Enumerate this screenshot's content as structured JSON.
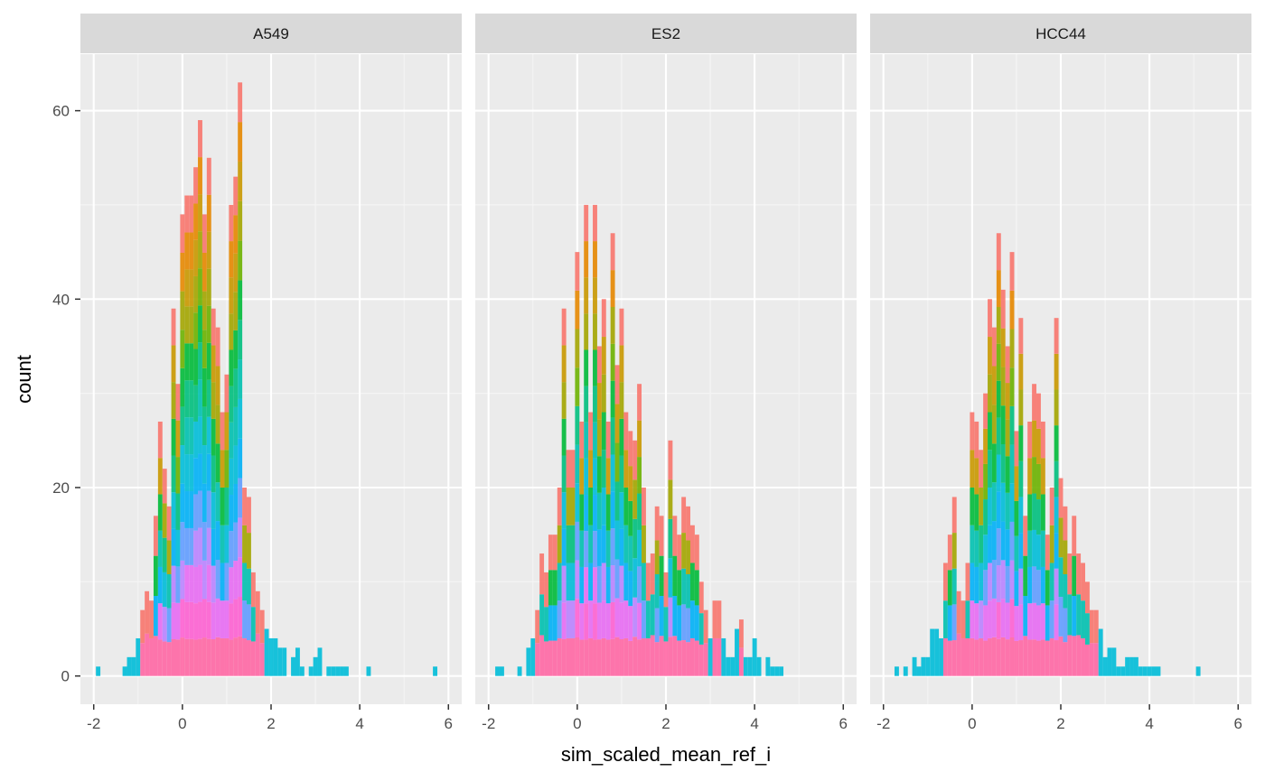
{
  "chart_data": {
    "type": "histogram-faceted-stacked",
    "title": "",
    "xlabel": "sim_scaled_mean_ref_i",
    "ylabel": "count",
    "xlim": [
      -2.3,
      6.3
    ],
    "ylim": [
      -3,
      66
    ],
    "x_ticks": [
      -2,
      0,
      2,
      4,
      6
    ],
    "x_tick_labels": [
      "-2",
      "0",
      "2",
      "4",
      "6"
    ],
    "y_ticks": [
      0,
      20,
      40,
      60
    ],
    "y_tick_labels": [
      "0",
      "20",
      "40",
      "60"
    ],
    "bin_width": 0.1,
    "grid": true,
    "legend": "none",
    "colors": {
      "panel_background": "#EBEBEB",
      "grid_major": "#FFFFFF",
      "grid_minor": "#F5F5F5",
      "strip_background": "#D9D9D9",
      "stack_order": [
        "#F8766D",
        "#E58700",
        "#C99800",
        "#A3A500",
        "#6BB100",
        "#00BA38",
        "#00BF7D",
        "#00C0AF",
        "#00BCD8",
        "#00B0F6",
        "#619CFF",
        "#B983FF",
        "#E76BF3",
        "#FD61D1",
        "#FF67A4"
      ]
    },
    "facets": [
      {
        "label": "A549",
        "x": [
          -1.9,
          -1.3,
          -1.2,
          -1.1,
          -1.0,
          -0.9,
          -0.8,
          -0.7,
          -0.6,
          -0.5,
          -0.4,
          -0.3,
          -0.2,
          -0.1,
          0.0,
          0.1,
          0.2,
          0.3,
          0.4,
          0.5,
          0.6,
          0.7,
          0.8,
          0.9,
          1.0,
          1.1,
          1.2,
          1.3,
          1.4,
          1.5,
          1.6,
          1.7,
          1.8,
          1.9,
          2.0,
          2.1,
          2.2,
          2.3,
          2.5,
          2.6,
          2.7,
          2.9,
          3.0,
          3.1,
          3.3,
          3.4,
          3.5,
          3.6,
          3.7,
          4.2,
          5.7
        ],
        "counts": [
          1,
          1,
          2,
          2,
          4,
          7,
          9,
          8,
          17,
          27,
          22,
          18,
          39,
          31,
          49,
          51,
          51,
          54,
          59,
          49,
          55,
          39,
          37,
          28,
          32,
          50,
          53,
          63,
          20,
          19,
          11,
          9,
          7,
          5,
          4,
          4,
          3,
          3,
          2,
          3,
          1,
          1,
          2,
          3,
          1,
          1,
          1,
          1,
          1,
          1,
          1
        ]
      },
      {
        "label": "ES2",
        "x": [
          -1.8,
          -1.7,
          -1.3,
          -1.1,
          -1.0,
          -0.9,
          -0.8,
          -0.7,
          -0.6,
          -0.5,
          -0.4,
          -0.3,
          -0.2,
          -0.1,
          0.0,
          0.1,
          0.2,
          0.3,
          0.4,
          0.5,
          0.6,
          0.7,
          0.8,
          0.9,
          1.0,
          1.1,
          1.2,
          1.3,
          1.4,
          1.5,
          1.6,
          1.7,
          1.8,
          1.9,
          2.0,
          2.1,
          2.2,
          2.3,
          2.4,
          2.5,
          2.6,
          2.7,
          2.8,
          2.9,
          3.0,
          3.1,
          3.2,
          3.3,
          3.4,
          3.5,
          3.6,
          3.7,
          3.8,
          3.9,
          4.0,
          4.1,
          4.3,
          4.4,
          4.5,
          4.6
        ],
        "counts": [
          1,
          1,
          1,
          3,
          4,
          7,
          13,
          11,
          15,
          15,
          20,
          39,
          24,
          24,
          45,
          27,
          50,
          28,
          50,
          35,
          40,
          27,
          47,
          33,
          39,
          28,
          26,
          25,
          31,
          20,
          12,
          13,
          18,
          17,
          11,
          25,
          17,
          15,
          19,
          18,
          16,
          15,
          10,
          7,
          4,
          8,
          8,
          4,
          2,
          2,
          5,
          6,
          2,
          2,
          4,
          2,
          2,
          1,
          1,
          1
        ]
      },
      {
        "label": "HCC44",
        "x": [
          -1.7,
          -1.5,
          -1.3,
          -1.2,
          -1.1,
          -1.0,
          -0.9,
          -0.8,
          -0.7,
          -0.6,
          -0.5,
          -0.4,
          -0.3,
          -0.2,
          -0.1,
          0.0,
          0.1,
          0.2,
          0.3,
          0.4,
          0.5,
          0.6,
          0.7,
          0.8,
          0.9,
          1.0,
          1.1,
          1.2,
          1.3,
          1.4,
          1.5,
          1.6,
          1.7,
          1.8,
          1.9,
          2.0,
          2.1,
          2.2,
          2.3,
          2.4,
          2.5,
          2.6,
          2.7,
          2.8,
          2.9,
          3.0,
          3.1,
          3.2,
          3.3,
          3.4,
          3.5,
          3.6,
          3.7,
          3.8,
          3.9,
          4.0,
          4.1,
          4.2,
          5.1
        ],
        "counts": [
          1,
          1,
          2,
          1,
          2,
          2,
          5,
          5,
          4,
          12,
          15,
          19,
          9,
          8,
          12,
          28,
          27,
          24,
          30,
          40,
          37,
          47,
          41,
          35,
          45,
          26,
          38,
          17,
          27,
          31,
          30,
          27,
          15,
          20,
          38,
          21,
          18,
          13,
          17,
          13,
          12,
          10,
          7,
          7,
          5,
          2,
          3,
          3,
          1,
          1,
          2,
          2,
          2,
          1,
          1,
          1,
          1,
          1,
          1
        ]
      }
    ]
  }
}
